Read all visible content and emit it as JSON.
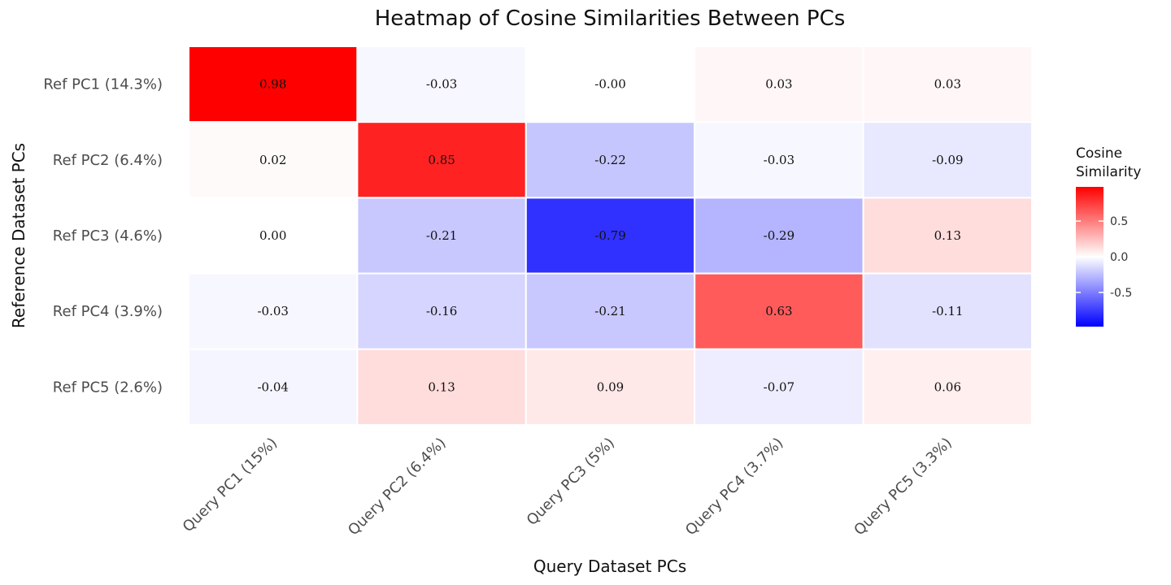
{
  "chart_data": {
    "type": "heatmap",
    "title": "Heatmap of Cosine Similarities Between PCs",
    "xlabel": "Query Dataset PCs",
    "ylabel": "Reference Dataset PCs",
    "x_categories": [
      "Query PC1 (15%)",
      "Query PC2 (6.4%)",
      "Query PC3 (5%)",
      "Query PC4 (3.7%)",
      "Query PC5 (3.3%)"
    ],
    "y_categories": [
      "Ref PC1 (14.3%)",
      "Ref PC2 (6.4%)",
      "Ref PC3 (4.6%)",
      "Ref PC4 (3.9%)",
      "Ref PC5 (2.6%)"
    ],
    "values": [
      [
        0.98,
        -0.03,
        -0.0,
        0.03,
        0.03
      ],
      [
        0.02,
        0.85,
        -0.22,
        -0.03,
        -0.09
      ],
      [
        0.0,
        -0.21,
        -0.79,
        -0.29,
        0.13
      ],
      [
        -0.03,
        -0.16,
        -0.21,
        0.63,
        -0.11
      ],
      [
        -0.04,
        0.13,
        0.09,
        -0.07,
        0.06
      ]
    ],
    "value_labels": [
      [
        "0.98",
        "-0.03",
        "-0.00",
        "0.03",
        "0.03"
      ],
      [
        "0.02",
        "0.85",
        "-0.22",
        "-0.03",
        "-0.09"
      ],
      [
        "0.00",
        "-0.21",
        "-0.79",
        "-0.29",
        "0.13"
      ],
      [
        "-0.03",
        "-0.16",
        "-0.21",
        "0.63",
        "-0.11"
      ],
      [
        "-0.04",
        "0.13",
        "0.09",
        "-0.07",
        "0.06"
      ]
    ],
    "legend": {
      "title_lines": [
        "Cosine",
        "Similarity"
      ],
      "ticks": [
        0.5,
        0.0,
        -0.5
      ],
      "tick_labels": [
        "0.5",
        "0.0",
        "-0.5"
      ],
      "range": [
        -0.98,
        0.98
      ],
      "position": "right"
    },
    "colors": {
      "low": "#0000ff",
      "mid": "#ffffff",
      "high": "#ff0000"
    },
    "grid": false
  }
}
